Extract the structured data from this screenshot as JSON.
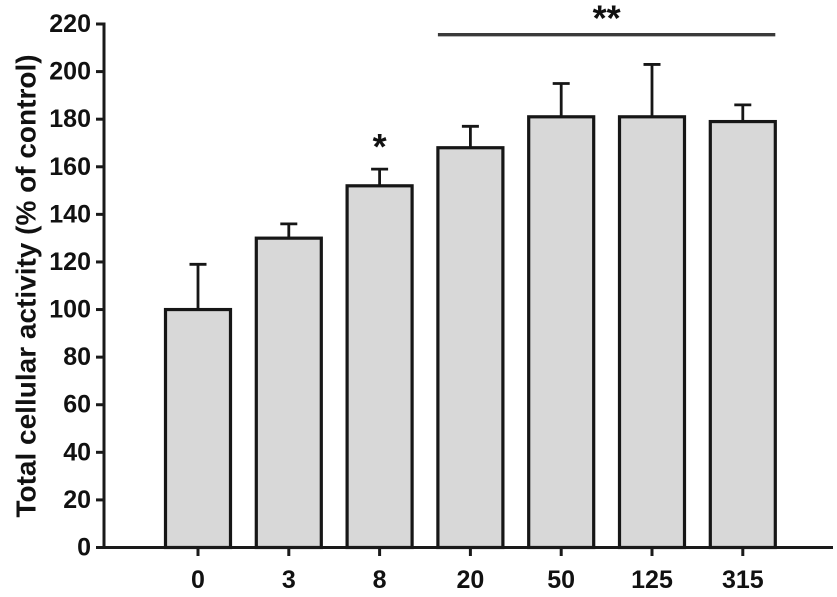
{
  "chart_data": {
    "type": "bar",
    "title": "",
    "xlabel": "",
    "ylabel": "Total cellular activity (% of control)",
    "categories": [
      "0",
      "3",
      "8",
      "20",
      "50",
      "125",
      "315"
    ],
    "series": [
      {
        "name": "Total cellular activity",
        "values": [
          100,
          130,
          152,
          168,
          181,
          181,
          179
        ],
        "errors_plus": [
          19,
          6,
          7,
          9,
          14,
          22,
          7
        ]
      }
    ],
    "ylim": [
      0,
      220
    ],
    "ytick_step": 20,
    "ytick_labels": [
      "0",
      "20",
      "40",
      "60",
      "80",
      "100",
      "120",
      "140",
      "160",
      "180",
      "200",
      "220"
    ],
    "grid": false,
    "legend_position": "none",
    "colors": {
      "bar_fill": "#d8d8d8",
      "bar_edge": "#161616",
      "axis": "#1a1a1a",
      "error_bar": "#161616",
      "significance_line": "#3a3a3a",
      "text": "#111111",
      "background": "#ffffff"
    },
    "annotations": [
      {
        "kind": "star",
        "symbol": "*",
        "bar_index": 2
      },
      {
        "kind": "bracket",
        "symbol": "**",
        "from_bar_index": 3,
        "to_bar_index": 6,
        "line_y_value": 215.5
      }
    ]
  }
}
